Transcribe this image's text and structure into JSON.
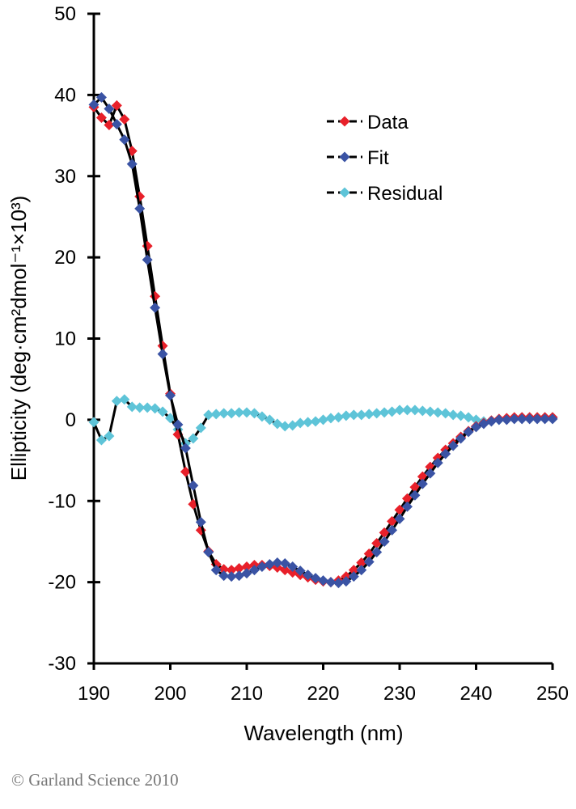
{
  "chart_data": {
    "type": "line",
    "xlabel": "Wavelength (nm)",
    "ylabel": "Ellipticity  (deg·cm²dmol⁻¹×10³)",
    "xlim": [
      190,
      250
    ],
    "ylim": [
      -30,
      50
    ],
    "xticks": [
      190,
      200,
      210,
      220,
      230,
      240,
      250
    ],
    "yticks": [
      -30,
      -20,
      -10,
      0,
      10,
      20,
      30,
      40,
      50
    ],
    "grid": false,
    "legend_position": "top-right",
    "x": [
      190,
      191,
      192,
      193,
      194,
      195,
      196,
      197,
      198,
      199,
      200,
      201,
      202,
      203,
      204,
      205,
      206,
      207,
      208,
      209,
      210,
      211,
      212,
      213,
      214,
      215,
      216,
      217,
      218,
      219,
      220,
      221,
      222,
      223,
      224,
      225,
      226,
      227,
      228,
      229,
      230,
      231,
      232,
      233,
      234,
      235,
      236,
      237,
      238,
      239,
      240,
      241,
      242,
      243,
      244,
      245,
      246,
      247,
      248,
      249,
      250
    ],
    "series": [
      {
        "name": "Data",
        "color": "#e8202a",
        "values": [
          38.5,
          37.2,
          36.3,
          38.7,
          37.0,
          33.1,
          27.5,
          21.4,
          15.2,
          9.1,
          3.2,
          -1.8,
          -6.4,
          -10.4,
          -13.6,
          -16.2,
          -17.8,
          -18.4,
          -18.5,
          -18.3,
          -18.1,
          -17.9,
          -17.9,
          -18.0,
          -18.2,
          -18.5,
          -18.8,
          -19.1,
          -19.4,
          -19.7,
          -19.9,
          -20.0,
          -19.8,
          -19.3,
          -18.5,
          -17.6,
          -16.5,
          -15.2,
          -13.9,
          -12.5,
          -11.1,
          -9.7,
          -8.3,
          -7.0,
          -5.8,
          -4.7,
          -3.7,
          -2.9,
          -2.1,
          -1.4,
          -0.8,
          -0.4,
          -0.1,
          0.1,
          0.2,
          0.3,
          0.3,
          0.3,
          0.3,
          0.3,
          0.3
        ]
      },
      {
        "name": "Fit",
        "color": "#3a53a4",
        "values": [
          38.8,
          39.7,
          38.3,
          36.4,
          34.5,
          31.5,
          26.0,
          19.7,
          13.8,
          8.1,
          3.0,
          -0.6,
          -3.5,
          -8.1,
          -12.6,
          -16.3,
          -18.5,
          -19.2,
          -19.3,
          -19.2,
          -18.9,
          -18.5,
          -18.1,
          -17.8,
          -17.6,
          -17.7,
          -18.1,
          -18.6,
          -19.1,
          -19.5,
          -19.8,
          -20.0,
          -20.1,
          -19.9,
          -19.3,
          -18.5,
          -17.5,
          -16.3,
          -15.0,
          -13.6,
          -12.2,
          -10.7,
          -9.3,
          -7.9,
          -6.6,
          -5.3,
          -4.2,
          -3.2,
          -2.3,
          -1.5,
          -0.9,
          -0.5,
          -0.2,
          0.0,
          0.0,
          0.1,
          0.1,
          0.1,
          0.1,
          0.1,
          0.1
        ]
      },
      {
        "name": "Residual",
        "color": "#5ec4d8",
        "values": [
          -0.3,
          -2.5,
          -2.0,
          2.3,
          2.5,
          1.6,
          1.5,
          1.5,
          1.4,
          1.0,
          0.2,
          -1.2,
          -2.9,
          -2.3,
          -1.0,
          0.6,
          0.7,
          0.8,
          0.8,
          0.9,
          0.9,
          0.8,
          0.4,
          0.0,
          -0.5,
          -0.8,
          -0.7,
          -0.4,
          -0.3,
          -0.2,
          0.0,
          0.2,
          0.3,
          0.5,
          0.6,
          0.6,
          0.7,
          0.8,
          0.9,
          1.0,
          1.2,
          1.2,
          1.2,
          1.1,
          1.0,
          0.9,
          0.8,
          0.6,
          0.5,
          0.3,
          0.0,
          -0.2,
          -0.1,
          0.0,
          0.1,
          0.2,
          0.3,
          0.3,
          0.3,
          0.3,
          0.3
        ]
      }
    ]
  },
  "copyright": "© Garland Science 2010"
}
